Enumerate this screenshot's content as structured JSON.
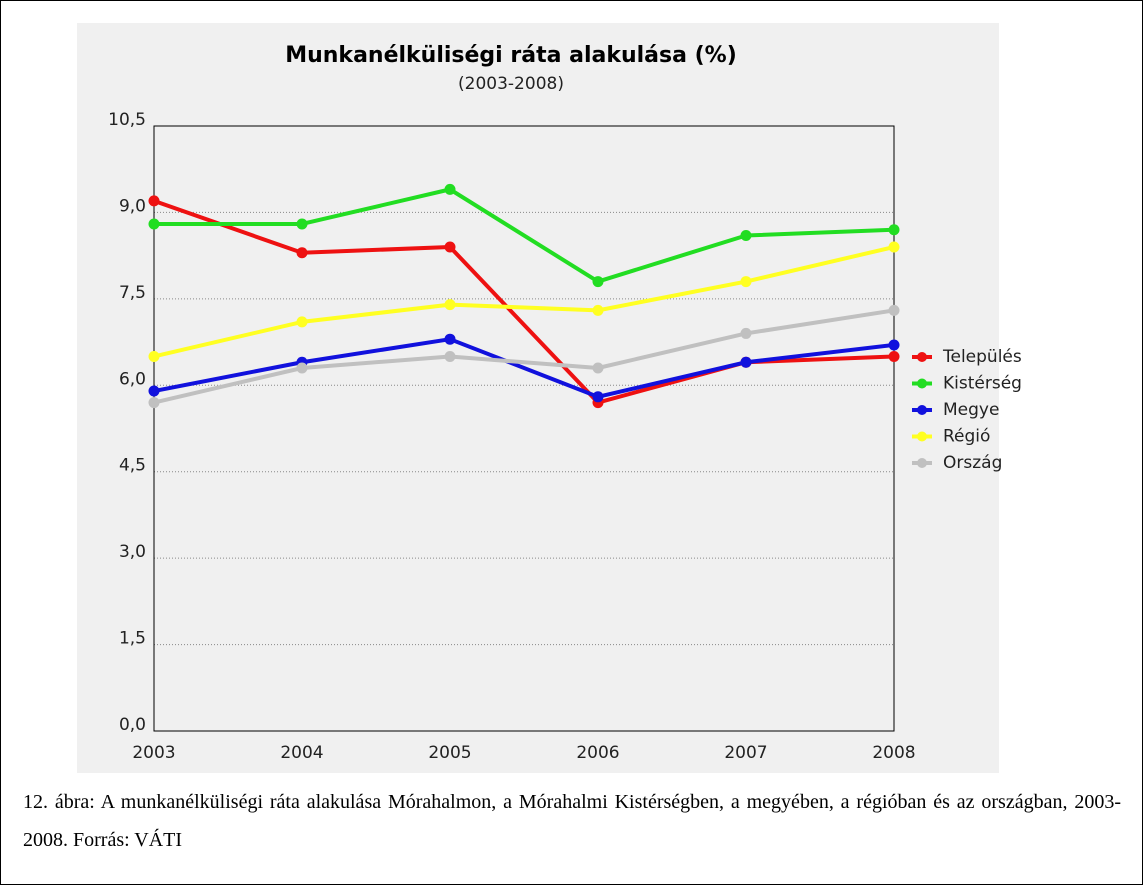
{
  "chart_data": {
    "type": "line",
    "title": "Munkanélküliségi ráta alakulása (%)",
    "subtitle": "(2003-2008)",
    "categories": [
      "2003",
      "2004",
      "2005",
      "2006",
      "2007",
      "2008"
    ],
    "series": [
      {
        "name": "Település",
        "color": "#ee1111",
        "values": [
          9.2,
          8.3,
          8.4,
          5.7,
          6.4,
          6.5
        ]
      },
      {
        "name": "Kistérség",
        "color": "#22dd22",
        "values": [
          8.8,
          8.8,
          9.4,
          7.8,
          8.6,
          8.7
        ]
      },
      {
        "name": "Megye",
        "color": "#1111dd",
        "values": [
          5.9,
          6.4,
          6.8,
          5.8,
          6.4,
          6.7
        ]
      },
      {
        "name": "Régió",
        "color": "#ffff22",
        "values": [
          6.5,
          7.1,
          7.4,
          7.3,
          7.8,
          8.4
        ]
      },
      {
        "name": "Ország",
        "color": "#c0c0c0",
        "values": [
          5.7,
          6.3,
          6.5,
          6.3,
          6.9,
          7.3
        ]
      }
    ],
    "ylim": [
      0,
      10.5
    ],
    "yticks": [
      {
        "value": 0,
        "label": "0,0"
      },
      {
        "value": 1.5,
        "label": "1,5"
      },
      {
        "value": 3,
        "label": "3,0"
      },
      {
        "value": 4.5,
        "label": "4,5"
      },
      {
        "value": 6,
        "label": "6,0"
      },
      {
        "value": 7.5,
        "label": "7,5"
      },
      {
        "value": 9,
        "label": "9,0"
      },
      {
        "value": 10.5,
        "label": "10,5"
      }
    ],
    "grid": true,
    "legend": "right"
  },
  "caption": "12. ábra: A munkanélküliségi ráta alakulása Mórahalmon, a Mórahalmi Kistérségben, a megyében, a régióban és az országban, 2003-2008. Forrás: VÁTI"
}
